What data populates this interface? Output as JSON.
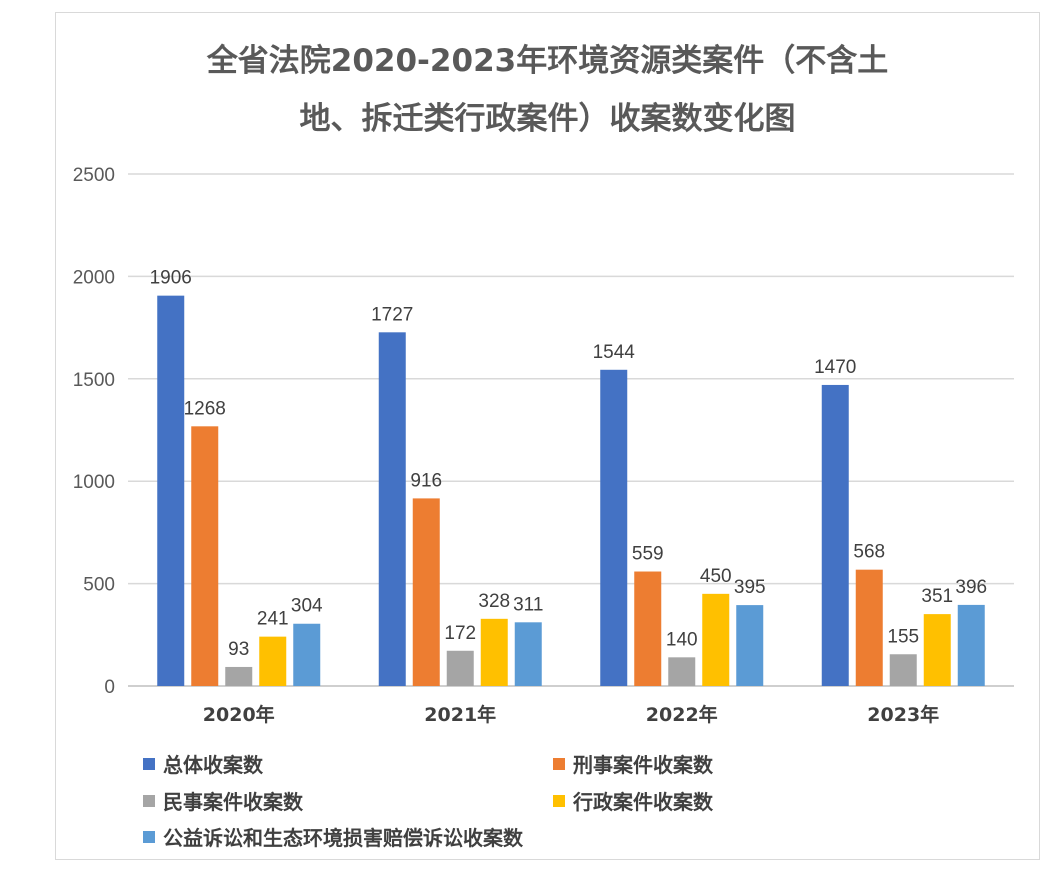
{
  "chart_data": {
    "type": "bar",
    "title_lines": [
      "全省法院2020-2023年环境资源类案件（不含土",
      "地、拆迁类行政案件）收案数变化图"
    ],
    "categories": [
      "2020年",
      "2021年",
      "2022年",
      "2023年"
    ],
    "series": [
      {
        "name": "总体收案数",
        "color": "#4472c4",
        "values": [
          1906,
          1727,
          1544,
          1470
        ]
      },
      {
        "name": "刑事案件收案数",
        "color": "#ed7d31",
        "values": [
          1268,
          916,
          559,
          568
        ]
      },
      {
        "name": "民事案件收案数",
        "color": "#a5a5a5",
        "values": [
          93,
          172,
          140,
          155
        ]
      },
      {
        "name": "行政案件收案数",
        "color": "#ffc000",
        "values": [
          241,
          328,
          450,
          351
        ]
      },
      {
        "name": "公益诉讼和生态环境损害赔偿诉讼收案数",
        "color": "#5b9bd5",
        "values": [
          304,
          311,
          395,
          396
        ]
      }
    ],
    "ylim": [
      0,
      2500
    ],
    "yticks": [
      "0",
      "500",
      "1000",
      "1500",
      "2000",
      "2500"
    ],
    "grid": true,
    "legend_position": "bottom"
  }
}
